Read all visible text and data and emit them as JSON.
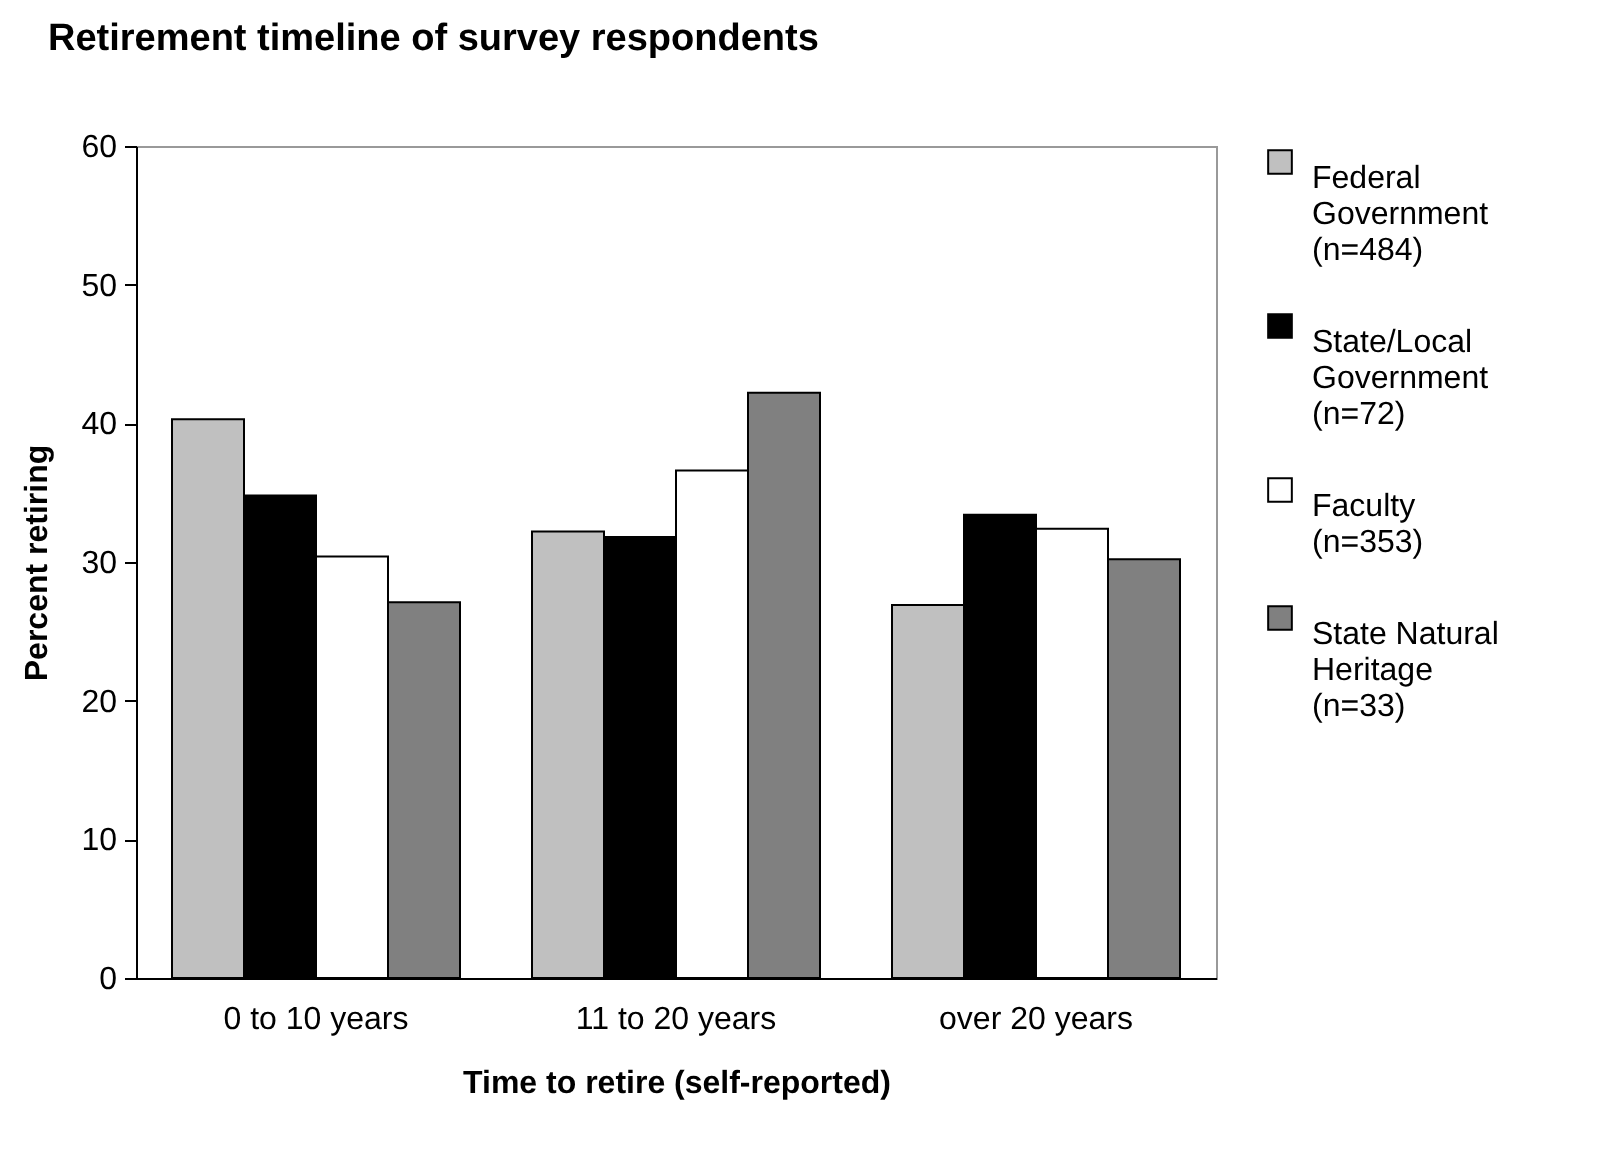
{
  "chart_data": {
    "type": "bar",
    "title": "Retirement timeline of survey respondents",
    "xlabel": "Time to retire (self-reported)",
    "ylabel": "Percent retiring",
    "categories": [
      "0 to 10 years",
      "11 to 20 years",
      "over 20 years"
    ],
    "series": [
      {
        "name": "Federal Government (n=484)",
        "color": "#c0c0c0",
        "values": [
          40.3,
          32.2,
          26.9
        ]
      },
      {
        "name": "State/Local Government (n=72)",
        "color": "#000000",
        "values": [
          34.8,
          31.8,
          33.4
        ]
      },
      {
        "name": "Faculty (n=353)",
        "color": "#ffffff",
        "values": [
          30.4,
          36.6,
          32.4
        ]
      },
      {
        "name": "State Natural Heritage (n=33)",
        "color": "#808080",
        "values": [
          27.1,
          42.2,
          30.2
        ]
      }
    ],
    "ylim": [
      0,
      60
    ],
    "yticks": [
      0,
      10,
      20,
      30,
      40,
      50,
      60
    ],
    "grid": false,
    "legend": "right"
  }
}
